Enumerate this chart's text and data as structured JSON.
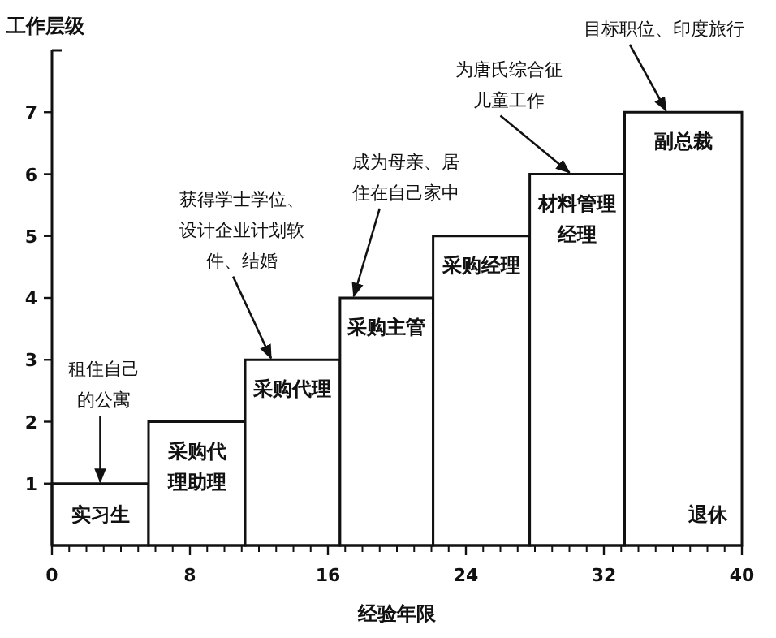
{
  "chart_data": {
    "type": "histogram",
    "xlabel": "经验年限",
    "ylabel": "工作层级",
    "bins": [
      0,
      5.6,
      11.2,
      16.7,
      22.1,
      27.7,
      33.2,
      40
    ],
    "values": [
      1,
      2,
      3,
      4,
      5,
      6,
      7
    ],
    "color": "#ffffff",
    "xlim": [
      0,
      40
    ],
    "ylim": [
      0,
      8
    ],
    "xticks": [
      0,
      8,
      16,
      24,
      32,
      40
    ],
    "yticks": [
      1,
      2,
      3,
      4,
      5,
      6,
      7
    ],
    "annotations": [
      {
        "text": "实习生",
        "x": 2.8,
        "y": 1
      },
      {
        "text": "采购代理助理",
        "x": 8.4,
        "y": 2
      },
      {
        "text": "采购代理",
        "x": 13.95,
        "y": 3
      },
      {
        "text": "采购主管",
        "x": 19.4,
        "y": 4
      },
      {
        "text": "采购经理",
        "x": 24.9,
        "y": 5
      },
      {
        "text": "材料管理经理",
        "x": 30.45,
        "y": 6
      },
      {
        "text": "副总裁",
        "x": 36.6,
        "y": 7
      },
      {
        "text": "退休",
        "x": 38,
        "y": 0
      },
      {
        "text": "租住自己的公寓",
        "x": 2.8,
        "y": 1
      },
      {
        "text": "获得学士学位、设计企业计划软件、结婚",
        "x": 12.7,
        "y": 3
      },
      {
        "text": "成为母亲、居住在自己家中",
        "x": 17.5,
        "y": 4
      },
      {
        "text": "为唐氏综合征儿童工作",
        "x": 30.0,
        "y": 6
      },
      {
        "text": "目标职位、印度旅行",
        "x": 35.6,
        "y": 7
      }
    ]
  }
}
